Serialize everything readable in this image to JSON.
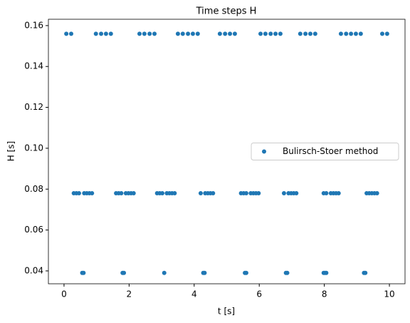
{
  "chart_data": {
    "type": "scatter",
    "title": "Time steps H",
    "xlabel": "t [s]",
    "ylabel": "H [s]",
    "xlim": [
      -0.48,
      10.48
    ],
    "ylim": [
      0.0337,
      0.1631
    ],
    "xticks": [
      0,
      2,
      4,
      6,
      8,
      10
    ],
    "yticks": [
      0.04,
      0.06,
      0.08,
      {
        "value": 0.1,
        "label": "0.10"
      },
      0.12,
      0.14,
      0.16
    ],
    "grid": false,
    "legend": "center right",
    "series": [
      {
        "name": "Bulirsch-Stoer method",
        "color": "#1f77b4",
        "x": [
          0.07,
          0.22,
          0.98,
          1.14,
          1.29,
          1.44,
          2.32,
          2.47,
          2.63,
          2.78,
          3.5,
          3.65,
          3.81,
          3.96,
          4.11,
          4.79,
          4.95,
          5.1,
          5.25,
          6.04,
          6.19,
          6.35,
          6.5,
          6.65,
          7.26,
          7.42,
          7.57,
          7.72,
          8.51,
          8.67,
          8.82,
          8.97,
          9.12,
          9.78,
          9.93,
          0.3,
          0.38,
          0.46,
          0.62,
          0.7,
          0.78,
          0.86,
          1.6,
          1.68,
          1.76,
          1.9,
          1.98,
          2.06,
          2.14,
          2.86,
          2.94,
          3.02,
          3.16,
          3.24,
          3.32,
          3.4,
          4.2,
          4.34,
          4.42,
          4.5,
          4.58,
          5.44,
          5.52,
          5.6,
          5.74,
          5.82,
          5.9,
          5.98,
          6.76,
          6.9,
          6.98,
          7.06,
          7.14,
          7.98,
          8.06,
          8.2,
          8.28,
          8.36,
          8.44,
          9.3,
          9.38,
          9.46,
          9.54,
          9.62,
          0.56,
          0.6,
          1.8,
          1.84,
          3.08,
          4.28,
          4.32,
          5.56,
          5.6,
          6.82,
          6.86,
          7.98,
          8.02,
          8.06,
          9.22,
          9.26
        ],
        "values": [
          0.156,
          0.156,
          0.156,
          0.156,
          0.156,
          0.156,
          0.156,
          0.156,
          0.156,
          0.156,
          0.156,
          0.156,
          0.156,
          0.156,
          0.156,
          0.156,
          0.156,
          0.156,
          0.156,
          0.156,
          0.156,
          0.156,
          0.156,
          0.156,
          0.156,
          0.156,
          0.156,
          0.156,
          0.156,
          0.156,
          0.156,
          0.156,
          0.156,
          0.156,
          0.156,
          0.078,
          0.078,
          0.078,
          0.078,
          0.078,
          0.078,
          0.078,
          0.078,
          0.078,
          0.078,
          0.078,
          0.078,
          0.078,
          0.078,
          0.078,
          0.078,
          0.078,
          0.078,
          0.078,
          0.078,
          0.078,
          0.078,
          0.078,
          0.078,
          0.078,
          0.078,
          0.078,
          0.078,
          0.078,
          0.078,
          0.078,
          0.078,
          0.078,
          0.078,
          0.078,
          0.078,
          0.078,
          0.078,
          0.078,
          0.078,
          0.078,
          0.078,
          0.078,
          0.078,
          0.078,
          0.078,
          0.078,
          0.078,
          0.078,
          0.039,
          0.039,
          0.039,
          0.039,
          0.039,
          0.039,
          0.039,
          0.039,
          0.039,
          0.039,
          0.039,
          0.039,
          0.039,
          0.039,
          0.039,
          0.039
        ]
      }
    ]
  }
}
